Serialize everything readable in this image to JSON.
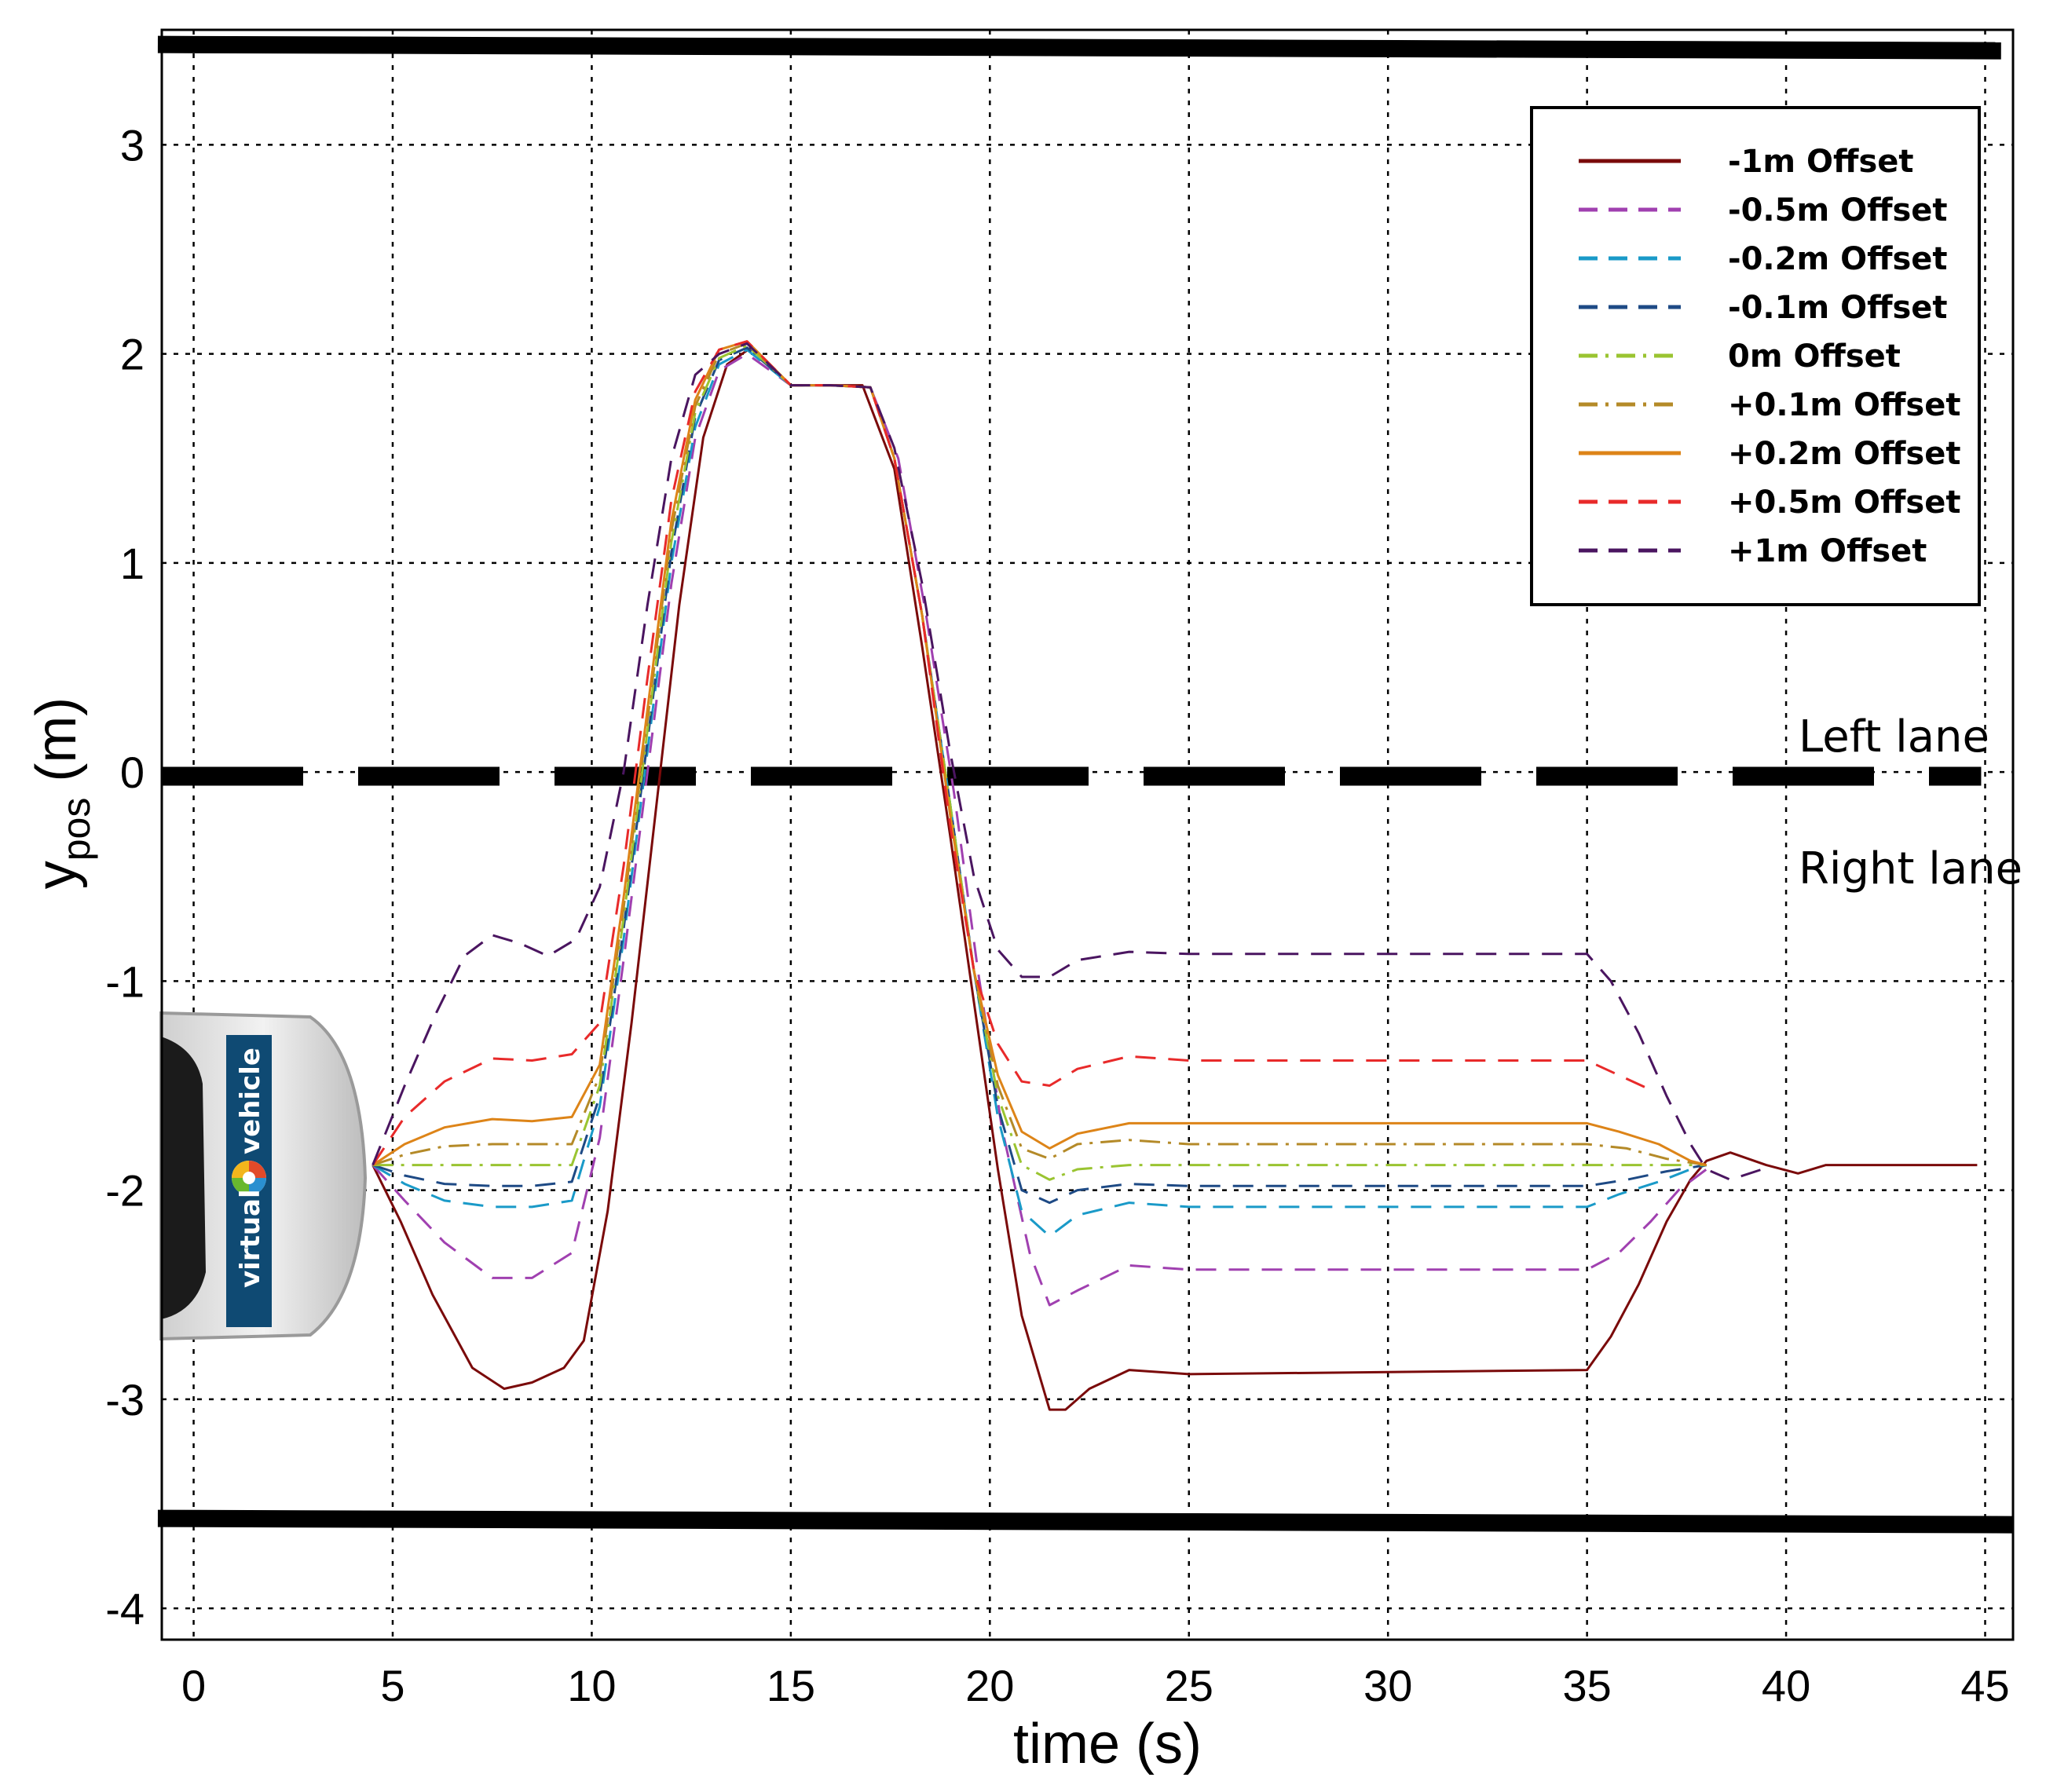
{
  "chart_data": {
    "type": "line",
    "xlabel": "time (s)",
    "ylabel_base": "y",
    "ylabel_sub": "pos",
    "ylabel_unit": " (m)",
    "xlim": [
      -0.8,
      45.7
    ],
    "ylim": [
      -4.15,
      3.55
    ],
    "xticks": [
      0,
      5,
      10,
      15,
      20,
      25,
      30,
      35,
      40,
      45
    ],
    "yticks": [
      -4,
      -3,
      -2,
      -1,
      0,
      1,
      2,
      3
    ],
    "grid": true,
    "lane_labels": {
      "upper": "Left lane",
      "lower": "Right lane"
    },
    "lane_boundaries": {
      "top": [
        [
          -0.9,
          3.48
        ],
        [
          45.4,
          3.45
        ]
      ],
      "bottom": [
        [
          -0.9,
          -3.57
        ],
        [
          45.7,
          -3.6
        ]
      ],
      "center_dashed_y": -0.02
    },
    "vehicle_logo": {
      "text1": "virtual",
      "text2": "vehicle",
      "brand_color": "#0f4a73"
    },
    "legend_position": "top-right",
    "series": [
      {
        "name": "-1m  Offset",
        "color": "#7a0a0a",
        "style": "solid",
        "x": [
          4.5,
          5.2,
          6.0,
          7.0,
          7.8,
          8.5,
          9.3,
          9.8,
          10.4,
          11.0,
          11.6,
          12.2,
          12.8,
          13.4,
          14.0,
          15.0,
          16.0,
          16.8,
          17.6,
          18.3,
          19.0,
          19.6,
          20.2,
          20.8,
          21.5,
          21.9,
          22.5,
          23.5,
          25.0,
          30.0,
          35.0,
          35.6,
          36.3,
          37.0,
          37.6,
          38.0,
          38.6,
          39.5,
          40.3,
          41.0,
          43.0,
          44.8
        ],
        "y": [
          -1.88,
          -2.15,
          -2.5,
          -2.85,
          -2.95,
          -2.92,
          -2.85,
          -2.72,
          -2.1,
          -1.2,
          -0.2,
          0.8,
          1.6,
          1.95,
          2.03,
          1.85,
          1.85,
          1.85,
          1.45,
          0.6,
          -0.3,
          -1.1,
          -1.9,
          -2.6,
          -3.05,
          -3.05,
          -2.95,
          -2.86,
          -2.88,
          -2.87,
          -2.86,
          -2.7,
          -2.45,
          -2.15,
          -1.95,
          -1.86,
          -1.82,
          -1.88,
          -1.92,
          -1.88,
          -1.88,
          -1.88
        ]
      },
      {
        "name": "-0.5m  Offset",
        "color": "#a040b0",
        "style": "dash",
        "x": [
          4.5,
          5.3,
          6.3,
          7.5,
          8.5,
          9.5,
          10.2,
          10.8,
          11.4,
          12.0,
          12.6,
          13.2,
          13.9,
          15.0,
          16.0,
          17.0,
          17.7,
          18.4,
          19.1,
          19.7,
          20.3,
          21.0,
          21.5,
          22.2,
          23.5,
          25.0,
          30.0,
          35.0,
          35.8,
          36.6,
          37.3,
          38.0
        ],
        "y": [
          -1.88,
          -2.05,
          -2.25,
          -2.42,
          -2.42,
          -2.3,
          -1.75,
          -0.9,
          0.0,
          0.9,
          1.6,
          1.92,
          2.0,
          1.85,
          1.85,
          1.84,
          1.5,
          0.75,
          -0.1,
          -0.95,
          -1.7,
          -2.3,
          -2.55,
          -2.48,
          -2.36,
          -2.38,
          -2.38,
          -2.38,
          -2.3,
          -2.15,
          -2.0,
          -1.9
        ]
      },
      {
        "name": "-0.2m  Offset",
        "color": "#1a9ac8",
        "style": "dash",
        "x": [
          4.5,
          5.3,
          6.3,
          7.5,
          8.5,
          9.5,
          10.2,
          10.8,
          11.4,
          12.0,
          12.6,
          13.2,
          13.9,
          15.0,
          16.0,
          17.0,
          17.6,
          18.3,
          19.0,
          19.6,
          20.2,
          20.8,
          21.5,
          22.2,
          23.5,
          25.0,
          30.0,
          35.0,
          35.8,
          36.8,
          37.6,
          38.0
        ],
        "y": [
          -1.88,
          -1.97,
          -2.05,
          -2.08,
          -2.08,
          -2.05,
          -1.6,
          -0.8,
          0.1,
          1.0,
          1.65,
          1.95,
          2.02,
          1.85,
          1.85,
          1.84,
          1.5,
          0.75,
          -0.15,
          -0.95,
          -1.65,
          -2.1,
          -2.22,
          -2.12,
          -2.06,
          -2.08,
          -2.08,
          -2.08,
          -2.02,
          -1.96,
          -1.9,
          -1.88
        ]
      },
      {
        "name": "-0.1m  Offset",
        "color": "#1e4a85",
        "style": "dash",
        "x": [
          4.5,
          5.3,
          6.3,
          7.5,
          8.5,
          9.5,
          10.2,
          10.8,
          11.4,
          12.0,
          12.6,
          13.2,
          13.9,
          15.0,
          16.0,
          17.0,
          17.6,
          18.3,
          19.0,
          19.6,
          20.2,
          20.8,
          21.5,
          22.2,
          23.5,
          25.0,
          30.0,
          35.0,
          36.0,
          37.0,
          38.0
        ],
        "y": [
          -1.88,
          -1.93,
          -1.97,
          -1.98,
          -1.98,
          -1.96,
          -1.55,
          -0.75,
          0.15,
          1.05,
          1.7,
          1.97,
          2.03,
          1.85,
          1.85,
          1.84,
          1.5,
          0.75,
          -0.15,
          -0.95,
          -1.6,
          -2.0,
          -2.06,
          -2.0,
          -1.97,
          -1.98,
          -1.98,
          -1.98,
          -1.95,
          -1.91,
          -1.88
        ]
      },
      {
        "name": "0m  Offset",
        "color": "#9ac431",
        "style": "dashdot",
        "x": [
          4.5,
          6.0,
          8.0,
          9.5,
          10.2,
          10.8,
          11.4,
          12.0,
          12.6,
          13.2,
          13.9,
          15.0,
          16.0,
          17.0,
          17.6,
          18.3,
          19.0,
          19.6,
          20.2,
          20.8,
          21.5,
          22.2,
          23.5,
          25.0,
          30.0,
          35.0,
          38.0
        ],
        "y": [
          -1.88,
          -1.88,
          -1.88,
          -1.88,
          -1.5,
          -0.7,
          0.2,
          1.1,
          1.72,
          1.98,
          2.04,
          1.85,
          1.85,
          1.84,
          1.5,
          0.75,
          -0.15,
          -0.95,
          -1.55,
          -1.88,
          -1.95,
          -1.9,
          -1.88,
          -1.88,
          -1.88,
          -1.88,
          -1.88
        ]
      },
      {
        "name": "+0.1m  Offset",
        "color": "#b48a28",
        "style": "dashdot",
        "x": [
          4.5,
          5.3,
          6.3,
          7.5,
          8.5,
          9.5,
          10.2,
          10.8,
          11.4,
          12.0,
          12.6,
          13.2,
          13.9,
          15.0,
          16.0,
          17.0,
          17.6,
          18.3,
          19.0,
          19.6,
          20.2,
          20.8,
          21.5,
          22.2,
          23.5,
          25.0,
          30.0,
          35.0,
          36.0,
          37.0,
          38.0
        ],
        "y": [
          -1.88,
          -1.83,
          -1.79,
          -1.78,
          -1.78,
          -1.78,
          -1.45,
          -0.65,
          0.25,
          1.15,
          1.75,
          2.0,
          2.05,
          1.85,
          1.85,
          1.84,
          1.5,
          0.75,
          -0.2,
          -0.95,
          -1.5,
          -1.8,
          -1.85,
          -1.78,
          -1.76,
          -1.78,
          -1.78,
          -1.78,
          -1.8,
          -1.85,
          -1.88
        ]
      },
      {
        "name": "+0.2m  Offset",
        "color": "#dd8418",
        "style": "solid",
        "x": [
          4.5,
          5.3,
          6.3,
          7.5,
          8.5,
          9.5,
          10.2,
          10.8,
          11.4,
          12.0,
          12.6,
          13.2,
          13.9,
          15.0,
          16.0,
          17.0,
          17.6,
          18.3,
          19.0,
          19.6,
          20.2,
          20.8,
          21.5,
          22.2,
          23.5,
          25.0,
          30.0,
          35.0,
          35.8,
          36.8,
          37.6,
          38.0
        ],
        "y": [
          -1.88,
          -1.78,
          -1.7,
          -1.66,
          -1.67,
          -1.65,
          -1.4,
          -0.6,
          0.3,
          1.2,
          1.78,
          2.02,
          2.06,
          1.85,
          1.85,
          1.84,
          1.5,
          0.75,
          -0.2,
          -0.95,
          -1.45,
          -1.72,
          -1.8,
          -1.73,
          -1.68,
          -1.68,
          -1.68,
          -1.68,
          -1.72,
          -1.78,
          -1.86,
          -1.88
        ]
      },
      {
        "name": "+0.5m  Offset",
        "color": "#e82a2a",
        "style": "dash",
        "x": [
          4.5,
          5.3,
          6.3,
          7.5,
          8.5,
          9.5,
          10.2,
          10.8,
          11.4,
          12.0,
          12.6,
          13.2,
          13.9,
          15.0,
          16.0,
          17.0,
          17.6,
          18.3,
          19.0,
          19.6,
          20.2,
          20.8,
          21.5,
          22.2,
          23.5,
          25.0,
          30.0,
          35.0,
          35.8,
          36.6
        ],
        "y": [
          -1.88,
          -1.65,
          -1.48,
          -1.37,
          -1.38,
          -1.35,
          -1.2,
          -0.45,
          0.45,
          1.3,
          1.82,
          2.02,
          2.06,
          1.85,
          1.85,
          1.84,
          1.5,
          0.75,
          -0.25,
          -0.95,
          -1.3,
          -1.48,
          -1.5,
          -1.42,
          -1.36,
          -1.38,
          -1.38,
          -1.38,
          -1.45,
          -1.52
        ]
      },
      {
        "name": "+1m  Offset",
        "color": "#4a1560",
        "style": "dash",
        "x": [
          4.5,
          5.3,
          6.1,
          6.8,
          7.5,
          8.2,
          8.9,
          9.6,
          10.2,
          10.8,
          11.4,
          12.0,
          12.6,
          13.2,
          13.9,
          15.0,
          16.0,
          17.0,
          17.6,
          18.3,
          19.0,
          19.6,
          20.2,
          20.8,
          21.5,
          22.2,
          23.5,
          25.0,
          30.0,
          35.0,
          35.6,
          36.3,
          37.0,
          37.6,
          38.0,
          38.6,
          39.4
        ],
        "y": [
          -1.88,
          -1.5,
          -1.15,
          -0.88,
          -0.78,
          -0.82,
          -0.88,
          -0.8,
          -0.55,
          0.0,
          0.8,
          1.5,
          1.9,
          2.0,
          2.05,
          1.85,
          1.85,
          1.84,
          1.55,
          0.9,
          0.1,
          -0.5,
          -0.85,
          -0.98,
          -0.98,
          -0.9,
          -0.86,
          -0.87,
          -0.87,
          -0.87,
          -1.0,
          -1.25,
          -1.55,
          -1.78,
          -1.9,
          -1.95,
          -1.9
        ]
      }
    ]
  }
}
